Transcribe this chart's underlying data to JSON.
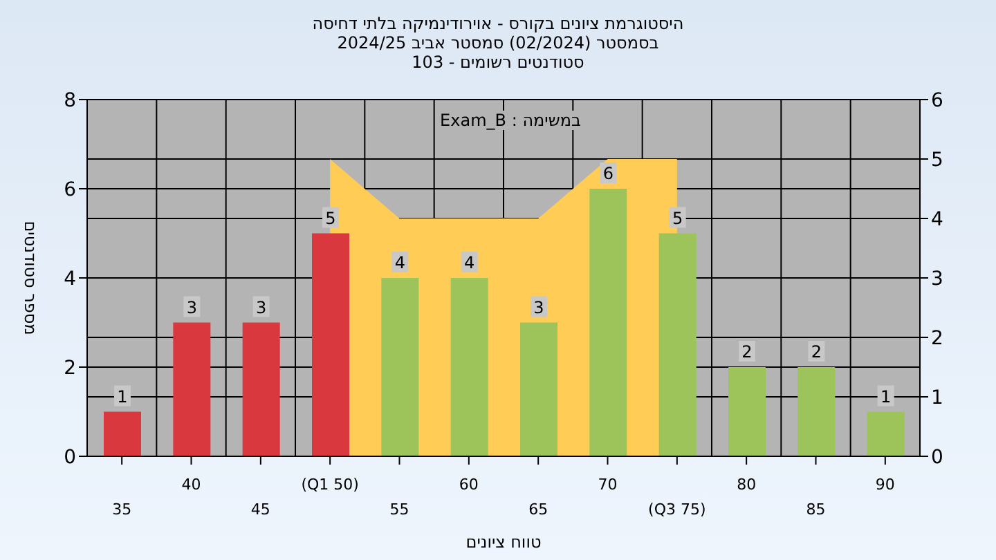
{
  "chart_data": {
    "type": "bar",
    "title": "היסטוגרמת ציונים בקורס - אוירודינמיקה בלתי דחיסה",
    "subtitle": "בסמסטר (02/2024) סמסטר אביב 2024/25\nסטודנטים רשומים - 103",
    "annotations": [
      "במשימה : Exam_B"
    ],
    "xlabel": "טווח ציונים",
    "ylabel": "מספר סטודנטים",
    "categories": [
      "35",
      "40",
      "45",
      "(Q1 50)",
      "55",
      "60",
      "65",
      "70",
      "(Q3 75)",
      "80",
      "85",
      "90"
    ],
    "series": [
      {
        "type": "area",
        "axis": "y2",
        "color": "#ffcc55",
        "values": [
          null,
          null,
          null,
          5,
          4,
          4,
          4,
          5,
          5,
          null,
          null,
          null
        ]
      },
      {
        "value_labels": [
          "1",
          "3",
          "3",
          "5",
          "4",
          "4",
          "3",
          "6",
          "5",
          "2",
          "2",
          "1"
        ],
        "colors": [
          "#d9393e",
          "#d9393e",
          "#d9393e",
          "#d9393e",
          "#9cc45a",
          "#9cc45a",
          "#9cc45a",
          "#9cc45a",
          "#9cc45a",
          "#9cc45a",
          "#9cc45a",
          "#9cc45a"
        ],
        "values": [
          1,
          3,
          3,
          5,
          4,
          4,
          3,
          6,
          5,
          2,
          2,
          1
        ]
      }
    ],
    "ylim": [
      0,
      8
    ],
    "yticks": [
      0,
      2,
      4,
      6,
      8
    ],
    "y2lim": [
      0,
      6
    ],
    "y2ticks": [
      0,
      1,
      2,
      3,
      4,
      5,
      6
    ],
    "grid": true
  }
}
